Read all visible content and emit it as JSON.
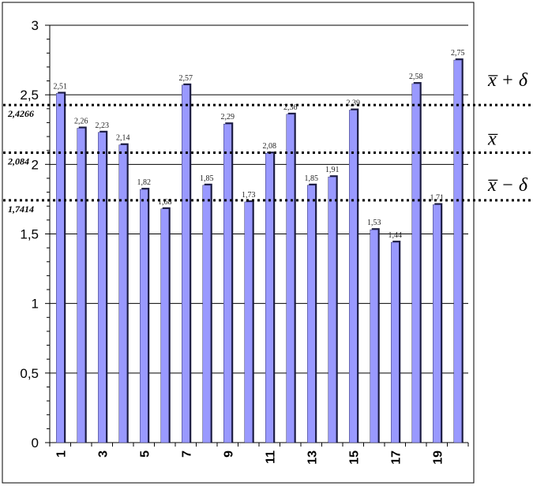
{
  "chart_data": {
    "type": "bar",
    "categories": [
      "1",
      "2",
      "3",
      "4",
      "5",
      "6",
      "7",
      "8",
      "9",
      "10",
      "11",
      "12",
      "13",
      "14",
      "15",
      "16",
      "17",
      "18",
      "19",
      "20"
    ],
    "x_tick_labels": [
      "1",
      "3",
      "5",
      "7",
      "9",
      "11",
      "13",
      "15",
      "17",
      "19"
    ],
    "values": [
      2.51,
      2.26,
      2.23,
      2.14,
      1.82,
      1.68,
      2.57,
      1.85,
      2.29,
      1.73,
      2.08,
      2.36,
      1.85,
      1.91,
      2.39,
      1.53,
      1.44,
      2.58,
      1.71,
      2.75
    ],
    "data_labels": [
      "2,51",
      "2,26",
      "2,23",
      "2,14",
      "1,82",
      "1,68",
      "2,57",
      "1,85",
      "2,29",
      "1,73",
      "2,08",
      "2,36",
      "1,85",
      "1,91",
      "2,39",
      "1,53",
      "1,44",
      "2,58",
      "1,71",
      "2,75"
    ],
    "ylim": [
      0,
      3
    ],
    "y_ticks": [
      0,
      0.5,
      1,
      1.5,
      2,
      2.5,
      3
    ],
    "y_tick_labels": [
      "0",
      "0,5",
      "1",
      "1,5",
      "2",
      "2,5",
      "3"
    ],
    "grid": true,
    "bar_color": "#9999ff",
    "title": "",
    "xlabel": "",
    "ylabel": "",
    "reference_lines": [
      {
        "value": 2.4266,
        "label": "2,4266",
        "symbol": "x̅ + δ"
      },
      {
        "value": 2.084,
        "label": "2,084",
        "symbol": "x̅"
      },
      {
        "value": 1.7414,
        "label": "1,7414",
        "symbol": "x̅ − δ"
      }
    ]
  }
}
